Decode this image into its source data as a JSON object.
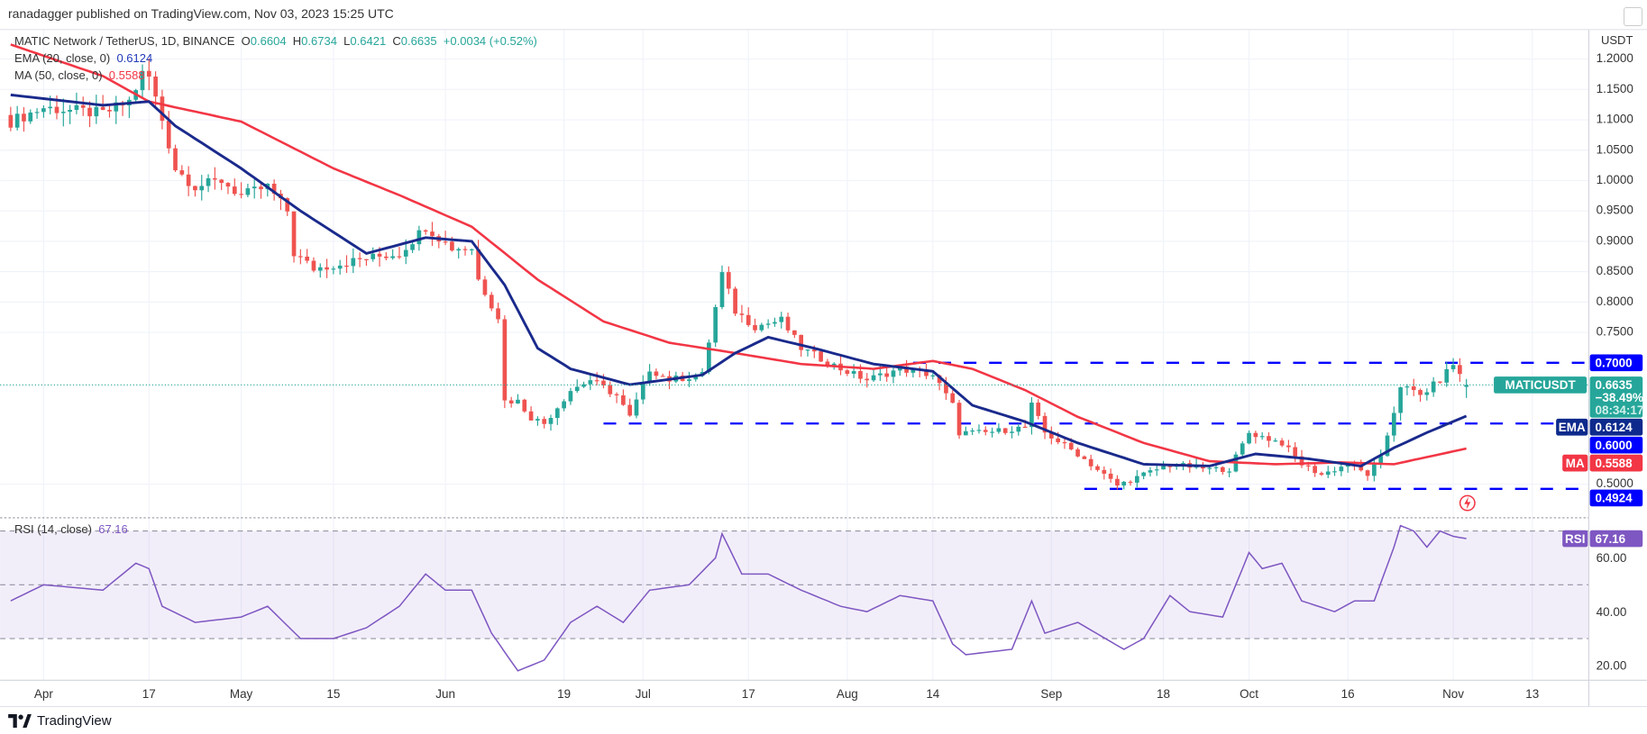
{
  "header": {
    "published": "ranadagger published on TradingView.com, Nov 03, 2023 15:25 UTC"
  },
  "legend": {
    "symbol": "MATIC Network / TetherUS, 1D, BINANCE",
    "o_label": "O",
    "o": "0.6604",
    "h_label": "H",
    "h": "0.6734",
    "l_label": "L",
    "l": "0.6421",
    "c_label": "C",
    "c": "0.6635",
    "change": "+0.0034 (+0.52%)",
    "ema_label": "EMA (20, close, 0)",
    "ema_value": "0.6124",
    "ma_label": "MA (50, close, 0)",
    "ma_value": "0.5588",
    "rsi_label": "RSI (14, close)",
    "rsi_value": "67.16"
  },
  "axis": {
    "currency": "USDT"
  },
  "badges": {
    "level_high": "0.7000",
    "symbol": "MATICUSDT",
    "price": "0.6635",
    "pct": "−38.49%",
    "countdown": "08:34:17",
    "ema_tag": "EMA",
    "ema": "0.6124",
    "level_mid": "0.6000",
    "ma_tag": "MA",
    "ma": "0.5588",
    "level_low": "0.4924",
    "rsi_tag": "RSI",
    "rsi": "67.16"
  },
  "footer": {
    "brand": "TradingView"
  },
  "colors": {
    "up": "#26a69a",
    "down": "#ef5350",
    "ema": "#1a2a8c",
    "ma": "#f23645",
    "level": "#0000ff",
    "rsi": "#7e57c2"
  },
  "chart_data": {
    "type": "candlestick",
    "title": "MATIC Network / TetherUS, 1D, BINANCE",
    "start_date": "2023-03-27",
    "end_date": "2023-11-03",
    "ylim": [
      0.47,
      1.24
    ],
    "y_ticks": [
      "1.2000",
      "1.1500",
      "1.1000",
      "1.0500",
      "1.0000",
      "0.9500",
      "0.9000",
      "0.8500",
      "0.8000",
      "0.7500",
      "0.5000"
    ],
    "x_ticks": [
      [
        "2023-04-01",
        "Apr"
      ],
      [
        "2023-04-17",
        "17"
      ],
      [
        "2023-05-01",
        "May"
      ],
      [
        "2023-05-15",
        "15"
      ],
      [
        "2023-06-01",
        "Jun"
      ],
      [
        "2023-06-19",
        "19"
      ],
      [
        "2023-07-01",
        "Jul"
      ],
      [
        "2023-07-17",
        "17"
      ],
      [
        "2023-08-01",
        "Aug"
      ],
      [
        "2023-08-14",
        "14"
      ],
      [
        "2023-09-01",
        "Sep"
      ],
      [
        "2023-09-18",
        "18"
      ],
      [
        "2023-10-01",
        "Oct"
      ],
      [
        "2023-10-16",
        "16"
      ],
      [
        "2023-11-01",
        "Nov"
      ],
      [
        "2023-11-13",
        "13"
      ]
    ],
    "levels": [
      {
        "value": 0.7,
        "from": "2023-08-11"
      },
      {
        "value": 0.6,
        "from": "2023-06-25"
      },
      {
        "value": 0.4924,
        "from": "2023-09-06"
      }
    ],
    "close_anchors": [
      [
        "2023-03-27",
        1.097
      ],
      [
        "2023-04-01",
        1.12
      ],
      [
        "2023-04-10",
        1.11
      ],
      [
        "2023-04-14",
        1.13
      ],
      [
        "2023-04-16",
        1.175
      ],
      [
        "2023-04-17",
        1.17
      ],
      [
        "2023-04-19",
        1.1
      ],
      [
        "2023-04-21",
        1.02
      ],
      [
        "2023-04-24",
        0.99
      ],
      [
        "2023-04-28",
        1.0
      ],
      [
        "2023-05-01",
        0.975
      ],
      [
        "2023-05-05",
        0.99
      ],
      [
        "2023-05-08",
        0.95
      ],
      [
        "2023-05-09",
        0.88
      ],
      [
        "2023-05-12",
        0.855
      ],
      [
        "2023-05-16",
        0.863
      ],
      [
        "2023-05-20",
        0.872
      ],
      [
        "2023-05-25",
        0.88
      ],
      [
        "2023-05-29",
        0.924
      ],
      [
        "2023-06-02",
        0.889
      ],
      [
        "2023-06-05",
        0.889
      ],
      [
        "2023-06-06",
        0.837
      ],
      [
        "2023-06-09",
        0.776
      ],
      [
        "2023-06-10",
        0.637
      ],
      [
        "2023-06-12",
        0.637
      ],
      [
        "2023-06-14",
        0.61
      ],
      [
        "2023-06-16",
        0.6
      ],
      [
        "2023-06-20",
        0.655
      ],
      [
        "2023-06-23",
        0.672
      ],
      [
        "2023-06-27",
        0.646
      ],
      [
        "2023-06-29",
        0.61
      ],
      [
        "2023-07-02",
        0.69
      ],
      [
        "2023-07-05",
        0.672
      ],
      [
        "2023-07-10",
        0.68
      ],
      [
        "2023-07-13",
        0.846
      ],
      [
        "2023-07-15",
        0.785
      ],
      [
        "2023-07-18",
        0.76
      ],
      [
        "2023-07-22",
        0.77
      ],
      [
        "2023-07-25",
        0.724
      ],
      [
        "2023-07-31",
        0.69
      ],
      [
        "2023-08-04",
        0.672
      ],
      [
        "2023-08-09",
        0.69
      ],
      [
        "2023-08-14",
        0.68
      ],
      [
        "2023-08-17",
        0.63
      ],
      [
        "2023-08-18",
        0.585
      ],
      [
        "2023-08-22",
        0.585
      ],
      [
        "2023-08-28",
        0.594
      ],
      [
        "2023-08-29",
        0.63
      ],
      [
        "2023-08-31",
        0.585
      ],
      [
        "2023-09-05",
        0.55
      ],
      [
        "2023-09-11",
        0.498
      ],
      [
        "2023-09-15",
        0.516
      ],
      [
        "2023-09-19",
        0.533
      ],
      [
        "2023-09-25",
        0.525
      ],
      [
        "2023-09-28",
        0.525
      ],
      [
        "2023-10-01",
        0.585
      ],
      [
        "2023-10-06",
        0.568
      ],
      [
        "2023-10-09",
        0.533
      ],
      [
        "2023-10-12",
        0.516
      ],
      [
        "2023-10-16",
        0.533
      ],
      [
        "2023-10-19",
        0.516
      ],
      [
        "2023-10-21",
        0.542
      ],
      [
        "2023-10-23",
        0.62
      ],
      [
        "2023-10-24",
        0.663
      ],
      [
        "2023-10-27",
        0.646
      ],
      [
        "2023-10-30",
        0.672
      ],
      [
        "2023-11-01",
        0.698
      ],
      [
        "2023-11-02",
        0.68
      ],
      [
        "2023-11-03",
        0.6635
      ]
    ],
    "ema20_anchors": [
      [
        "2023-03-27",
        1.141
      ],
      [
        "2023-04-10",
        1.124
      ],
      [
        "2023-04-17",
        1.13
      ],
      [
        "2023-04-21",
        1.09
      ],
      [
        "2023-05-01",
        1.02
      ],
      [
        "2023-05-10",
        0.95
      ],
      [
        "2023-05-20",
        0.88
      ],
      [
        "2023-05-29",
        0.906
      ],
      [
        "2023-06-05",
        0.9
      ],
      [
        "2023-06-10",
        0.828
      ],
      [
        "2023-06-15",
        0.724
      ],
      [
        "2023-06-20",
        0.69
      ],
      [
        "2023-06-29",
        0.664
      ],
      [
        "2023-07-10",
        0.68
      ],
      [
        "2023-07-15",
        0.716
      ],
      [
        "2023-07-20",
        0.742
      ],
      [
        "2023-07-27",
        0.724
      ],
      [
        "2023-08-05",
        0.698
      ],
      [
        "2023-08-14",
        0.686
      ],
      [
        "2023-08-20",
        0.63
      ],
      [
        "2023-08-28",
        0.603
      ],
      [
        "2023-09-05",
        0.568
      ],
      [
        "2023-09-15",
        0.533
      ],
      [
        "2023-09-25",
        0.53
      ],
      [
        "2023-10-02",
        0.55
      ],
      [
        "2023-10-10",
        0.542
      ],
      [
        "2023-10-18",
        0.53
      ],
      [
        "2023-10-23",
        0.56
      ],
      [
        "2023-10-28",
        0.585
      ],
      [
        "2023-11-03",
        0.6124
      ]
    ],
    "ma50_anchors": [
      [
        "2023-03-27",
        1.224
      ],
      [
        "2023-04-10",
        1.172
      ],
      [
        "2023-04-17",
        1.13
      ],
      [
        "2023-05-01",
        1.097
      ],
      [
        "2023-05-15",
        1.02
      ],
      [
        "2023-05-25",
        0.976
      ],
      [
        "2023-06-05",
        0.924
      ],
      [
        "2023-06-15",
        0.837
      ],
      [
        "2023-06-25",
        0.768
      ],
      [
        "2023-07-05",
        0.733
      ],
      [
        "2023-07-15",
        0.716
      ],
      [
        "2023-07-25",
        0.698
      ],
      [
        "2023-08-05",
        0.69
      ],
      [
        "2023-08-14",
        0.703
      ],
      [
        "2023-08-20",
        0.69
      ],
      [
        "2023-08-28",
        0.655
      ],
      [
        "2023-09-05",
        0.611
      ],
      [
        "2023-09-15",
        0.568
      ],
      [
        "2023-09-25",
        0.538
      ],
      [
        "2023-10-05",
        0.533
      ],
      [
        "2023-10-15",
        0.536
      ],
      [
        "2023-10-23",
        0.533
      ],
      [
        "2023-11-03",
        0.5588
      ]
    ],
    "rsi": {
      "ylim": [
        10,
        80
      ],
      "ticks": [
        60,
        40,
        20
      ],
      "bands": [
        70,
        50,
        30
      ],
      "anchors": [
        [
          "2023-03-27",
          44
        ],
        [
          "2023-04-01",
          50
        ],
        [
          "2023-04-10",
          48
        ],
        [
          "2023-04-15",
          58
        ],
        [
          "2023-04-17",
          56
        ],
        [
          "2023-04-19",
          42
        ],
        [
          "2023-04-24",
          36
        ],
        [
          "2023-05-01",
          38
        ],
        [
          "2023-05-05",
          42
        ],
        [
          "2023-05-10",
          30
        ],
        [
          "2023-05-15",
          30
        ],
        [
          "2023-05-20",
          34
        ],
        [
          "2023-05-25",
          42
        ],
        [
          "2023-05-29",
          54
        ],
        [
          "2023-06-01",
          48
        ],
        [
          "2023-06-05",
          48
        ],
        [
          "2023-06-08",
          32
        ],
        [
          "2023-06-12",
          18
        ],
        [
          "2023-06-16",
          22
        ],
        [
          "2023-06-20",
          36
        ],
        [
          "2023-06-24",
          42
        ],
        [
          "2023-06-28",
          36
        ],
        [
          "2023-07-02",
          48
        ],
        [
          "2023-07-08",
          50
        ],
        [
          "2023-07-12",
          60
        ],
        [
          "2023-07-13",
          69
        ],
        [
          "2023-07-16",
          54
        ],
        [
          "2023-07-20",
          54
        ],
        [
          "2023-07-25",
          48
        ],
        [
          "2023-07-31",
          42
        ],
        [
          "2023-08-04",
          40
        ],
        [
          "2023-08-09",
          46
        ],
        [
          "2023-08-14",
          44
        ],
        [
          "2023-08-17",
          28
        ],
        [
          "2023-08-19",
          24
        ],
        [
          "2023-08-26",
          26
        ],
        [
          "2023-08-29",
          44
        ],
        [
          "2023-08-31",
          32
        ],
        [
          "2023-09-05",
          36
        ],
        [
          "2023-09-12",
          26
        ],
        [
          "2023-09-15",
          30
        ],
        [
          "2023-09-19",
          46
        ],
        [
          "2023-09-22",
          40
        ],
        [
          "2023-09-27",
          38
        ],
        [
          "2023-10-01",
          62
        ],
        [
          "2023-10-03",
          56
        ],
        [
          "2023-10-06",
          58
        ],
        [
          "2023-10-09",
          44
        ],
        [
          "2023-10-14",
          40
        ],
        [
          "2023-10-17",
          44
        ],
        [
          "2023-10-20",
          44
        ],
        [
          "2023-10-23",
          64
        ],
        [
          "2023-10-24",
          72
        ],
        [
          "2023-10-26",
          70
        ],
        [
          "2023-10-28",
          64
        ],
        [
          "2023-10-30",
          70
        ],
        [
          "2023-11-01",
          68
        ],
        [
          "2023-11-03",
          67.16
        ]
      ]
    }
  }
}
